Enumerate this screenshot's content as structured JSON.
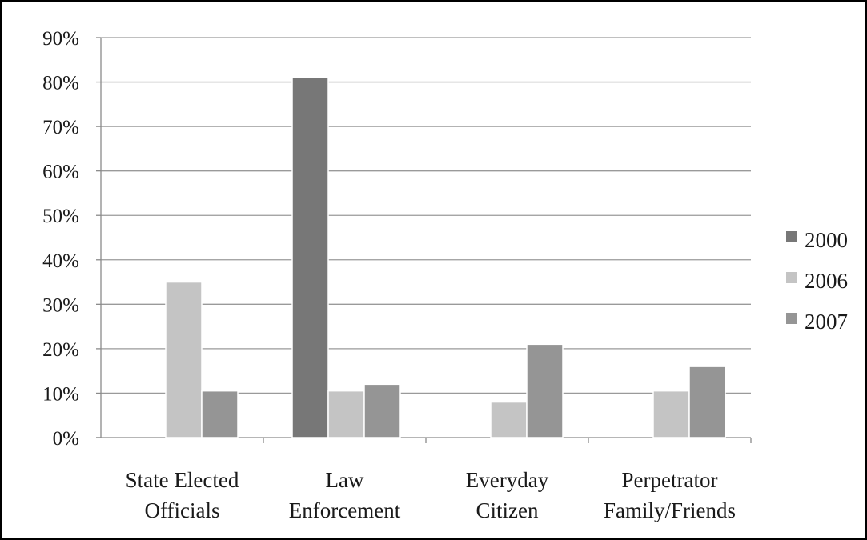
{
  "chart_data": {
    "type": "bar",
    "title": "",
    "xlabel": "",
    "ylabel": "",
    "categories": [
      [
        "State Elected",
        "Officials"
      ],
      [
        "Law",
        "Enforcement"
      ],
      [
        "Everyday",
        "Citizen"
      ],
      [
        "Perpetrator",
        "Family/Friends"
      ]
    ],
    "series": [
      {
        "name": "2000",
        "color": "#777777",
        "values": [
          0,
          81,
          0,
          0
        ]
      },
      {
        "name": "2006",
        "color": "#c4c4c4",
        "values": [
          35,
          10.5,
          8,
          10.5
        ]
      },
      {
        "name": "2007",
        "color": "#959595",
        "values": [
          10.5,
          12,
          21,
          16
        ]
      }
    ],
    "ylim": [
      0,
      90
    ],
    "yticks": [
      0,
      10,
      20,
      30,
      40,
      50,
      60,
      70,
      80,
      90
    ],
    "ytick_labels": [
      "0%",
      "10%",
      "20%",
      "30%",
      "40%",
      "50%",
      "60%",
      "70%",
      "80%",
      "90%"
    ],
    "grid": true,
    "legend_position": "right"
  }
}
